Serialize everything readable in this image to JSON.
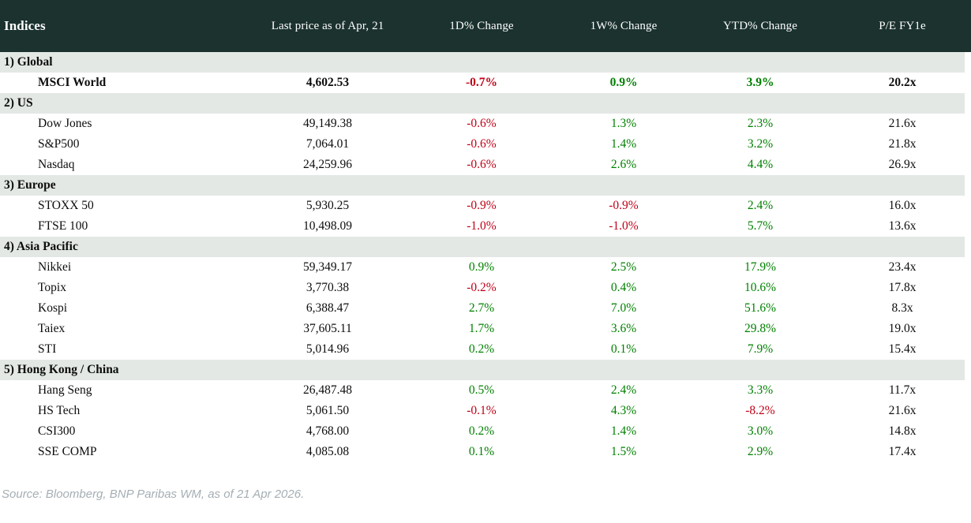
{
  "table": {
    "title": "Indices",
    "columns": [
      "Last price as of Apr, 21",
      "1D% Change",
      "1W% Change",
      "YTD% Change",
      "P/E FY1e"
    ],
    "sections": [
      {
        "label": "1) Global",
        "rows": [
          {
            "name": "MSCI World",
            "price": "4,602.53",
            "d1": "-0.7%",
            "w1": "0.9%",
            "ytd": "3.9%",
            "pe": "20.2x",
            "bold": true
          }
        ]
      },
      {
        "label": "2) US",
        "rows": [
          {
            "name": "Dow Jones",
            "price": "49,149.38",
            "d1": "-0.6%",
            "w1": "1.3%",
            "ytd": "2.3%",
            "pe": "21.6x",
            "bold": false
          },
          {
            "name": "S&P500",
            "price": "7,064.01",
            "d1": "-0.6%",
            "w1": "1.4%",
            "ytd": "3.2%",
            "pe": "21.8x",
            "bold": false
          },
          {
            "name": "Nasdaq",
            "price": "24,259.96",
            "d1": "-0.6%",
            "w1": "2.6%",
            "ytd": "4.4%",
            "pe": "26.9x",
            "bold": false
          }
        ]
      },
      {
        "label": "3) Europe",
        "rows": [
          {
            "name": "STOXX 50",
            "price": "5,930.25",
            "d1": "-0.9%",
            "w1": "-0.9%",
            "ytd": "2.4%",
            "pe": "16.0x",
            "bold": false
          },
          {
            "name": "FTSE 100",
            "price": "10,498.09",
            "d1": "-1.0%",
            "w1": "-1.0%",
            "ytd": "5.7%",
            "pe": "13.6x",
            "bold": false
          }
        ]
      },
      {
        "label": "4) Asia Pacific",
        "rows": [
          {
            "name": "Nikkei",
            "price": "59,349.17",
            "d1": "0.9%",
            "w1": "2.5%",
            "ytd": "17.9%",
            "pe": "23.4x",
            "bold": false
          },
          {
            "name": "Topix",
            "price": "3,770.38",
            "d1": "-0.2%",
            "w1": "0.4%",
            "ytd": "10.6%",
            "pe": "17.8x",
            "bold": false
          },
          {
            "name": "Kospi",
            "price": "6,388.47",
            "d1": "2.7%",
            "w1": "7.0%",
            "ytd": "51.6%",
            "pe": "8.3x",
            "bold": false
          },
          {
            "name": "Taiex",
            "price": "37,605.11",
            "d1": "1.7%",
            "w1": "3.6%",
            "ytd": "29.8%",
            "pe": "19.0x",
            "bold": false
          },
          {
            "name": "STI",
            "price": "5,014.96",
            "d1": "0.2%",
            "w1": "0.1%",
            "ytd": "7.9%",
            "pe": "15.4x",
            "bold": false
          }
        ]
      },
      {
        "label": "5) Hong Kong / China",
        "rows": [
          {
            "name": "Hang Seng",
            "price": "26,487.48",
            "d1": "0.5%",
            "w1": "2.4%",
            "ytd": "3.3%",
            "pe": "11.7x",
            "bold": false
          },
          {
            "name": "HS Tech",
            "price": "5,061.50",
            "d1": "-0.1%",
            "w1": "4.3%",
            "ytd": "-8.2%",
            "pe": "21.6x",
            "bold": false
          },
          {
            "name": "CSI300",
            "price": "4,768.00",
            "d1": "0.2%",
            "w1": "1.4%",
            "ytd": "3.0%",
            "pe": "14.8x",
            "bold": false
          },
          {
            "name": "SSE COMP",
            "price": "4,085.08",
            "d1": "0.1%",
            "w1": "1.5%",
            "ytd": "2.9%",
            "pe": "17.4x",
            "bold": false
          }
        ]
      }
    ]
  },
  "footer": {
    "source": "Source: Bloomberg, BNP Paribas WM, as of 21 Apr 2026."
  },
  "colors": {
    "header_bg": "#1b322e",
    "section_bg": "#e3e8e4",
    "negative": "#c00017",
    "positive": "#008000",
    "header_text": "#ffffff",
    "source_text": "#a5aeb4"
  }
}
